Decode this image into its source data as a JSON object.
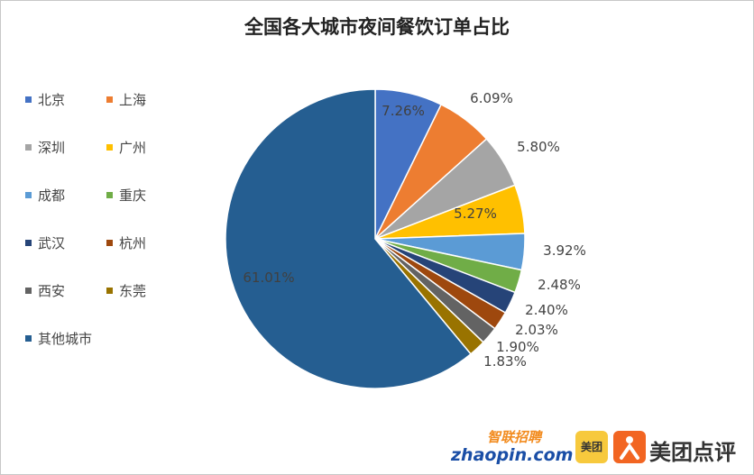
{
  "chart_data": {
    "type": "pie",
    "title": "全国各大城市夜间餐饮订单占比",
    "legend_position": "left",
    "slices": [
      {
        "name": "北京",
        "value": 7.26,
        "label": "7.26%",
        "color": "#4472c4"
      },
      {
        "name": "上海",
        "value": 6.09,
        "label": "6.09%",
        "color": "#ed7d31"
      },
      {
        "name": "深圳",
        "value": 5.8,
        "label": "5.80%",
        "color": "#a5a5a5"
      },
      {
        "name": "广州",
        "value": 5.27,
        "label": "5.27%",
        "color": "#ffc000"
      },
      {
        "name": "成都",
        "value": 3.92,
        "label": "3.92%",
        "color": "#5b9bd5"
      },
      {
        "name": "重庆",
        "value": 2.48,
        "label": "2.48%",
        "color": "#70ad47"
      },
      {
        "name": "武汉",
        "value": 2.4,
        "label": "2.40%",
        "color": "#264478"
      },
      {
        "name": "杭州",
        "value": 2.03,
        "label": "2.03%",
        "color": "#9e480e"
      },
      {
        "name": "西安",
        "value": 1.9,
        "label": "1.90%",
        "color": "#636363"
      },
      {
        "name": "东莞",
        "value": 1.83,
        "label": "1.83%",
        "color": "#997300"
      },
      {
        "name": "其他城市",
        "value": 61.01,
        "label": "61.01%",
        "color": "#255e91"
      }
    ]
  },
  "footer": {
    "zhaopin_cn": "智联招聘",
    "zhaopin_en": "zhaopin.com",
    "meituan_icon_text": "美团",
    "dianping_text": "美团点评"
  }
}
